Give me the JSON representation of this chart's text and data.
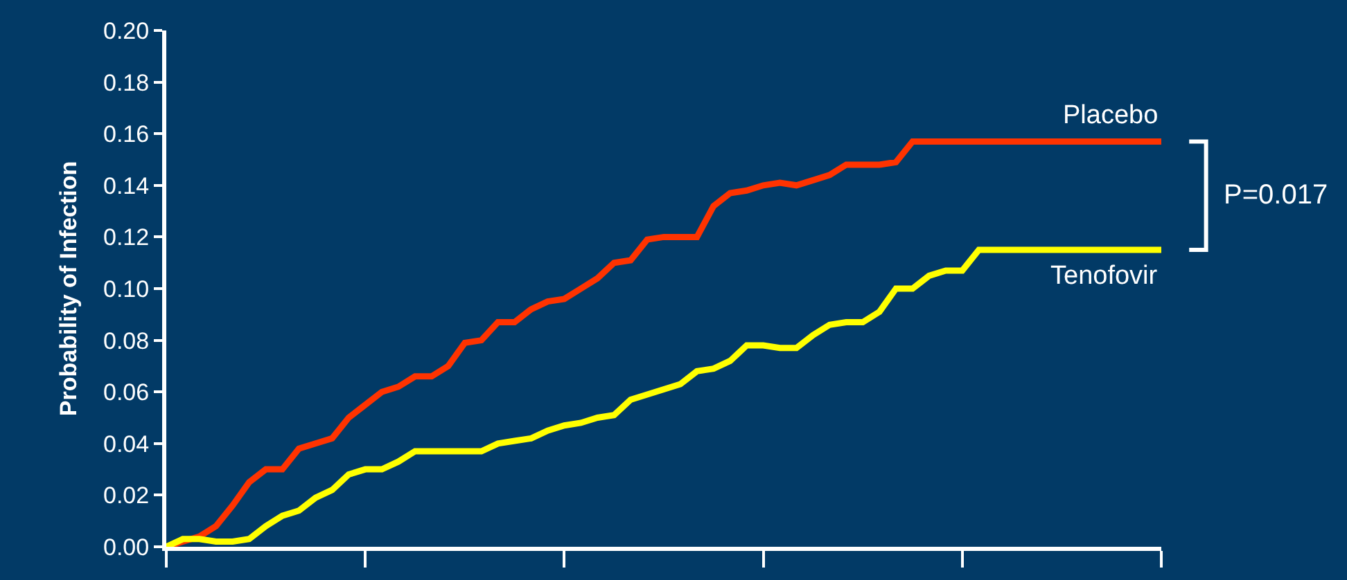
{
  "chart_data": {
    "type": "line",
    "ylabel": "Probability of Infection",
    "categories": [
      null,
      null,
      null,
      null,
      null,
      null,
      null,
      null,
      null,
      null,
      null,
      null,
      null,
      null,
      null,
      null,
      null,
      null,
      null,
      null,
      null,
      null,
      null,
      null,
      null,
      null,
      null,
      null,
      null,
      null,
      null,
      null,
      null,
      null,
      null,
      null,
      null,
      null,
      null,
      null,
      null,
      null,
      null,
      null,
      null,
      null,
      null,
      null,
      null,
      null,
      null,
      null,
      null,
      null,
      null,
      null,
      null,
      null,
      null,
      null,
      null
    ],
    "series": [
      {
        "name": "Placebo",
        "color": "#ff3300",
        "values": [
          0,
          0.002,
          0.004,
          0.008,
          0.016,
          0.025,
          0.03,
          0.03,
          0.038,
          0.04,
          0.042,
          0.05,
          0.055,
          0.06,
          0.062,
          0.066,
          0.066,
          0.07,
          0.079,
          0.08,
          0.087,
          0.087,
          0.092,
          0.095,
          0.096,
          0.1,
          0.104,
          0.11,
          0.111,
          0.119,
          0.12,
          0.12,
          0.12,
          0.132,
          0.137,
          0.138,
          0.14,
          0.141,
          0.14,
          0.142,
          0.144,
          0.148,
          0.148,
          0.148,
          0.149,
          0.157,
          0.157,
          0.157,
          0.157,
          0.157,
          0.157,
          0.157,
          0.157,
          0.157,
          0.157,
          0.157,
          0.157,
          0.157,
          0.157,
          0.157,
          0.157
        ]
      },
      {
        "name": "Tenofovir",
        "color": "#ffff00",
        "values": [
          0,
          0.003,
          0.003,
          0.002,
          0.002,
          0.003,
          0.008,
          0.012,
          0.014,
          0.019,
          0.022,
          0.028,
          0.03,
          0.03,
          0.033,
          0.037,
          0.037,
          0.037,
          0.037,
          0.037,
          0.04,
          0.041,
          0.042,
          0.045,
          0.047,
          0.048,
          0.05,
          0.051,
          0.057,
          0.059,
          0.061,
          0.063,
          0.068,
          0.069,
          0.072,
          0.078,
          0.078,
          0.077,
          0.077,
          0.082,
          0.086,
          0.087,
          0.087,
          0.091,
          0.1,
          0.1,
          0.105,
          0.107,
          0.107,
          0.115,
          0.115,
          0.115,
          0.115,
          0.115,
          0.115,
          0.115,
          0.115,
          0.115,
          0.115,
          0.115,
          0.115
        ]
      }
    ],
    "ylim": [
      0,
      0.2
    ],
    "yticks": [
      {
        "value": 0,
        "label": "0.00"
      },
      {
        "value": 0.02,
        "label": "0.02"
      },
      {
        "value": 0.04,
        "label": "0.04"
      },
      {
        "value": 0.06,
        "label": "0.06"
      },
      {
        "value": 0.08,
        "label": "0.08"
      },
      {
        "value": 0.1,
        "label": "0.10"
      },
      {
        "value": 0.12,
        "label": "0.12"
      },
      {
        "value": 0.14,
        "label": "0.14"
      },
      {
        "value": 0.16,
        "label": "0.16"
      },
      {
        "value": 0.18,
        "label": "0.18"
      },
      {
        "value": 0.2,
        "label": "0.20"
      }
    ],
    "annotations": [
      "P=0.017"
    ],
    "tick_labels": "y",
    "grid": false,
    "legend": false,
    "marker": "none",
    "line_style": "solid"
  }
}
